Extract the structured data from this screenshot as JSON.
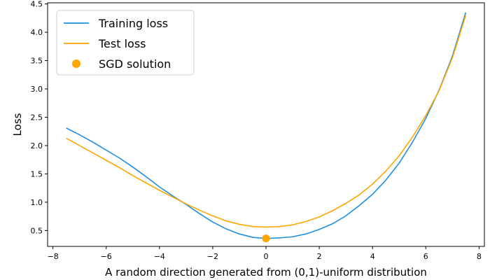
{
  "chart_data": {
    "type": "line",
    "xlabel": "A random direction generated from (0,1)-uniform distribution",
    "ylabel": "Loss",
    "xlim": [
      -8.2,
      8.2
    ],
    "ylim": [
      0.22,
      4.52
    ],
    "x_ticks": [
      -8,
      -6,
      -4,
      -2,
      0,
      2,
      4,
      6,
      8
    ],
    "x_tick_labels": [
      "−8",
      "−6",
      "−4",
      "−2",
      "0",
      "2",
      "4",
      "6",
      "8"
    ],
    "y_ticks": [
      0.5,
      1.0,
      1.5,
      2.0,
      2.5,
      3.0,
      3.5,
      4.0,
      4.5
    ],
    "y_tick_labels": [
      "0.5",
      "1.0",
      "1.5",
      "2.0",
      "2.5",
      "3.0",
      "3.5",
      "4.0",
      "4.5"
    ],
    "grid": false,
    "legend_position": "top-left",
    "x": [
      -7.5,
      -7.0,
      -6.5,
      -6.0,
      -5.5,
      -5.0,
      -4.5,
      -4.0,
      -3.5,
      -3.0,
      -2.5,
      -2.0,
      -1.5,
      -1.0,
      -0.5,
      0.0,
      0.5,
      1.0,
      1.5,
      2.0,
      2.5,
      3.0,
      3.5,
      4.0,
      4.5,
      5.0,
      5.5,
      6.0,
      6.5,
      7.0,
      7.5
    ],
    "series": [
      {
        "name": "Training loss",
        "color": "#1f8fe0",
        "values": [
          2.31,
          2.19,
          2.06,
          1.92,
          1.78,
          1.62,
          1.45,
          1.27,
          1.11,
          0.96,
          0.8,
          0.65,
          0.53,
          0.44,
          0.38,
          0.36,
          0.37,
          0.39,
          0.44,
          0.52,
          0.62,
          0.76,
          0.94,
          1.14,
          1.39,
          1.69,
          2.06,
          2.48,
          2.98,
          3.58,
          4.35
        ]
      },
      {
        "name": "Test loss",
        "color": "#ffa500",
        "values": [
          2.13,
          2.0,
          1.87,
          1.74,
          1.61,
          1.47,
          1.34,
          1.21,
          1.09,
          0.97,
          0.86,
          0.76,
          0.67,
          0.61,
          0.57,
          0.56,
          0.57,
          0.6,
          0.66,
          0.74,
          0.85,
          0.98,
          1.13,
          1.32,
          1.55,
          1.82,
          2.15,
          2.53,
          2.97,
          3.55,
          4.3
        ]
      }
    ],
    "points": [
      {
        "name": "SGD solution",
        "x": 0,
        "y": 0.36,
        "color": "#ffa500"
      }
    ]
  }
}
